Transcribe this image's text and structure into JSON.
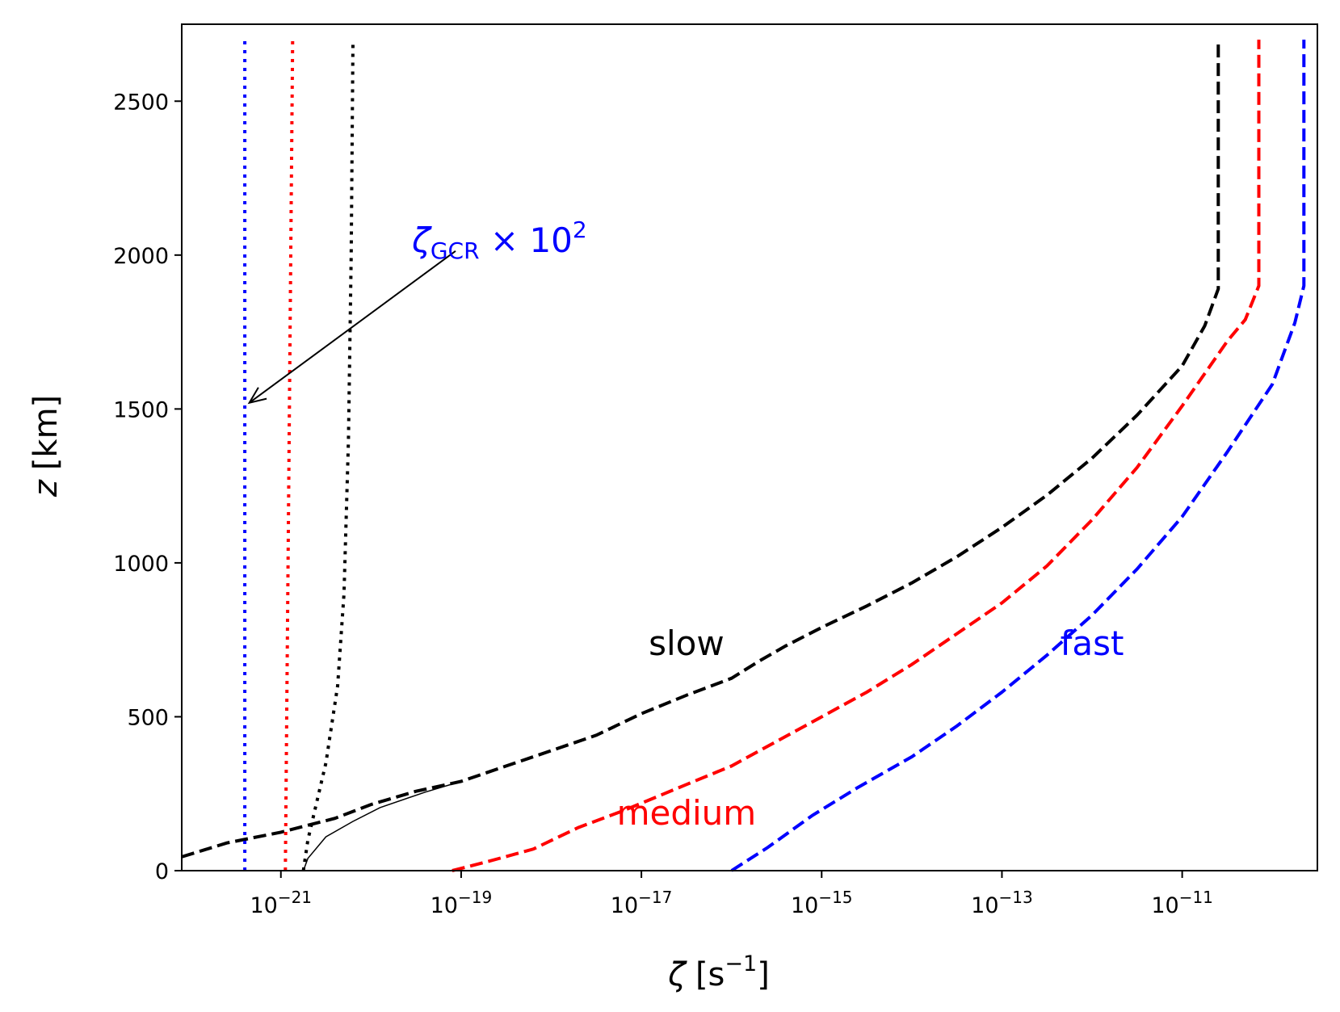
{
  "chart_data": {
    "type": "line",
    "title": "",
    "xscale": "log",
    "xlim_exp": [
      -22.1,
      -9.5
    ],
    "ylim": [
      0,
      2750
    ],
    "xlabel": {
      "symbol": "ζ",
      "unit": "[s",
      "sup": "−1",
      "close": "]"
    },
    "ylabel": {
      "symbol": "z",
      "unit": "[km]"
    },
    "xtick_exponents": [
      -21,
      -19,
      -17,
      -15,
      -13,
      -11
    ],
    "xtick_labels": [
      {
        "base": "10",
        "exp": "−21"
      },
      {
        "base": "10",
        "exp": "−19"
      },
      {
        "base": "10",
        "exp": "−17"
      },
      {
        "base": "10",
        "exp": "−15"
      },
      {
        "base": "10",
        "exp": "−13"
      },
      {
        "base": "10",
        "exp": "−11"
      }
    ],
    "yticks": [
      0,
      500,
      1000,
      1500,
      2000,
      2500
    ],
    "ytick_labels": [
      "0",
      "500",
      "1000",
      "1500",
      "2000",
      "2500"
    ],
    "colors": {
      "slow": "#000000",
      "medium": "#ff0000",
      "fast": "#0000ff"
    },
    "series": [
      {
        "name": "slow",
        "style": "dashed",
        "color": "#000000",
        "points": [
          [
            -22.1,
            45
          ],
          [
            -21.6,
            90
          ],
          [
            -21,
            125
          ],
          [
            -20.4,
            170
          ],
          [
            -20.0,
            215
          ],
          [
            -19.5,
            258
          ],
          [
            -19.0,
            290
          ],
          [
            -18.5,
            340
          ],
          [
            -18.0,
            390
          ],
          [
            -17.5,
            440
          ],
          [
            -17.0,
            510
          ],
          [
            -16.5,
            570
          ],
          [
            -16.0,
            625
          ],
          [
            -15.7,
            680
          ],
          [
            -15.4,
            730
          ],
          [
            -15.0,
            790
          ],
          [
            -14.5,
            860
          ],
          [
            -14.0,
            935
          ],
          [
            -13.5,
            1020
          ],
          [
            -13.0,
            1115
          ],
          [
            -12.5,
            1220
          ],
          [
            -12.0,
            1340
          ],
          [
            -11.5,
            1480
          ],
          [
            -11.0,
            1640
          ],
          [
            -10.75,
            1770
          ],
          [
            -10.6,
            1890
          ],
          [
            -10.6,
            2700
          ]
        ]
      },
      {
        "name": "slow-full",
        "style": "solid-thin",
        "color": "#000000",
        "points": [
          [
            -20.75,
            0
          ],
          [
            -20.7,
            40
          ],
          [
            -20.5,
            110
          ],
          [
            -20.2,
            160
          ],
          [
            -19.9,
            205
          ],
          [
            -19.4,
            255
          ],
          [
            -19.0,
            290
          ]
        ]
      },
      {
        "name": "medium",
        "style": "dashed",
        "color": "#ff0000",
        "points": [
          [
            -19.1,
            0
          ],
          [
            -18.7,
            30
          ],
          [
            -18.2,
            70
          ],
          [
            -17.7,
            140
          ],
          [
            -17.2,
            195
          ],
          [
            -16.5,
            280
          ],
          [
            -16.0,
            340
          ],
          [
            -15.5,
            420
          ],
          [
            -15.0,
            500
          ],
          [
            -14.5,
            580
          ],
          [
            -14.0,
            670
          ],
          [
            -13.5,
            770
          ],
          [
            -13.0,
            870
          ],
          [
            -12.5,
            990
          ],
          [
            -12.0,
            1140
          ],
          [
            -11.5,
            1310
          ],
          [
            -11.0,
            1510
          ],
          [
            -10.5,
            1720
          ],
          [
            -10.3,
            1790
          ],
          [
            -10.15,
            1900
          ],
          [
            -10.15,
            2700
          ]
        ]
      },
      {
        "name": "fast",
        "style": "dashed",
        "color": "#0000ff",
        "points": [
          [
            -16.0,
            0
          ],
          [
            -15.6,
            75
          ],
          [
            -15.1,
            180
          ],
          [
            -14.6,
            270
          ],
          [
            -14.0,
            370
          ],
          [
            -13.5,
            470
          ],
          [
            -13.0,
            580
          ],
          [
            -12.5,
            700
          ],
          [
            -12.0,
            830
          ],
          [
            -11.5,
            980
          ],
          [
            -11.0,
            1150
          ],
          [
            -10.5,
            1360
          ],
          [
            -10.0,
            1580
          ],
          [
            -9.75,
            1780
          ],
          [
            -9.65,
            1900
          ],
          [
            -9.65,
            2700
          ]
        ]
      },
      {
        "name": "slow-gcr",
        "style": "dotted",
        "color": "#000000",
        "points": [
          [
            -20.75,
            0
          ],
          [
            -20.7,
            100
          ],
          [
            -20.62,
            200
          ],
          [
            -20.5,
            350
          ],
          [
            -20.37,
            600
          ],
          [
            -20.3,
            900
          ],
          [
            -20.25,
            1400
          ],
          [
            -20.22,
            2000
          ],
          [
            -20.2,
            2700
          ]
        ]
      },
      {
        "name": "medium-gcr",
        "style": "dotted",
        "color": "#ff0000",
        "points": [
          [
            -20.95,
            0
          ],
          [
            -20.87,
            2700
          ]
        ]
      },
      {
        "name": "fast-gcr",
        "style": "dotted",
        "color": "#0000ff",
        "points": [
          [
            -21.4,
            0
          ],
          [
            -21.4,
            2700
          ]
        ]
      }
    ],
    "annotations": [
      {
        "text": "slow",
        "color": "#000000",
        "x_exp": -16.5,
        "y": 700
      },
      {
        "text": "medium",
        "color": "#ff0000",
        "x_exp": -16.5,
        "y": 150
      },
      {
        "text": "fast",
        "color": "#0000ff",
        "x_exp": -12.0,
        "y": 700
      }
    ],
    "gcr_annotation": {
      "symbol": "ζ",
      "sub": "GCR",
      "mult": " × 10",
      "sup": "2",
      "color": "#0000ff",
      "x_exp": -19.6,
      "y": 2000,
      "arrow_to_x_exp": -21.35,
      "arrow_to_y": 1520
    }
  }
}
